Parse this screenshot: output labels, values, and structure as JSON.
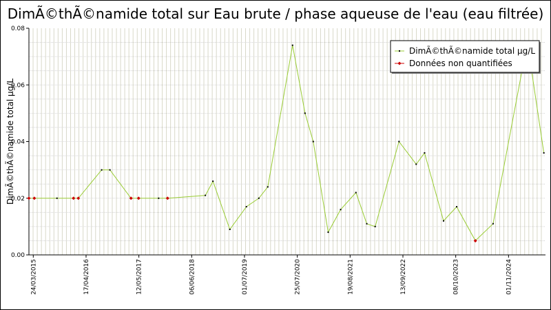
{
  "chart_data": {
    "type": "line",
    "title": "DimÃ©thÃ©namide total sur Eau brute / phase aqueuse de l'eau (eau filtrée)",
    "ylabel": "DimÃ©thÃ©namide total µg/L",
    "xlabel": "",
    "ylim": [
      0,
      0.08
    ],
    "yticks": [
      "0.00",
      "0.02",
      "0.04",
      "0.06",
      "0.08"
    ],
    "xticks": [
      "24/03/2015",
      "17/04/2016",
      "12/05/2017",
      "06/06/2018",
      "01/07/2019",
      "25/07/2020",
      "19/08/2021",
      "13/09/2022",
      "08/10/2023",
      "01/11/2024"
    ],
    "grid": true,
    "legend_position": "top-right",
    "colors": {
      "line": "#99cc33",
      "quantified": "#000000",
      "non_quantified": "#cc0000",
      "grid": "#d8d8c8"
    },
    "series": [
      {
        "name": "DimÃ©thÃ©namide total µg/L",
        "points": [
          {
            "x": "2015-02-20",
            "y": 0.02,
            "nq": true
          },
          {
            "x": "2015-04-01",
            "y": 0.02,
            "nq": true
          },
          {
            "x": "2015-09-15",
            "y": 0.02,
            "nq": false
          },
          {
            "x": "2016-01-15",
            "y": 0.02,
            "nq": true
          },
          {
            "x": "2016-02-20",
            "y": 0.02,
            "nq": true
          },
          {
            "x": "2016-08-10",
            "y": 0.03,
            "nq": false
          },
          {
            "x": "2016-10-10",
            "y": 0.03,
            "nq": false
          },
          {
            "x": "2017-03-15",
            "y": 0.02,
            "nq": true
          },
          {
            "x": "2017-05-10",
            "y": 0.02,
            "nq": true
          },
          {
            "x": "2017-10-05",
            "y": 0.02,
            "nq": false
          },
          {
            "x": "2017-12-10",
            "y": 0.02,
            "nq": true
          },
          {
            "x": "2018-09-15",
            "y": 0.021,
            "nq": false
          },
          {
            "x": "2018-11-10",
            "y": 0.026,
            "nq": false
          },
          {
            "x": "2019-03-15",
            "y": 0.009,
            "nq": false
          },
          {
            "x": "2019-07-15",
            "y": 0.017,
            "nq": false
          },
          {
            "x": "2019-10-15",
            "y": 0.02,
            "nq": false
          },
          {
            "x": "2019-12-20",
            "y": 0.024,
            "nq": false
          },
          {
            "x": "2020-06-20",
            "y": 0.074,
            "nq": false
          },
          {
            "x": "2020-09-20",
            "y": 0.05,
            "nq": false
          },
          {
            "x": "2020-11-20",
            "y": 0.04,
            "nq": false
          },
          {
            "x": "2021-03-10",
            "y": 0.008,
            "nq": false
          },
          {
            "x": "2021-06-10",
            "y": 0.016,
            "nq": false
          },
          {
            "x": "2021-10-01",
            "y": 0.022,
            "nq": false
          },
          {
            "x": "2021-12-20",
            "y": 0.011,
            "nq": false
          },
          {
            "x": "2022-02-20",
            "y": 0.01,
            "nq": false
          },
          {
            "x": "2022-08-15",
            "y": 0.04,
            "nq": false
          },
          {
            "x": "2022-12-20",
            "y": 0.032,
            "nq": false
          },
          {
            "x": "2023-02-20",
            "y": 0.036,
            "nq": false
          },
          {
            "x": "2023-07-10",
            "y": 0.012,
            "nq": false
          },
          {
            "x": "2023-10-15",
            "y": 0.017,
            "nq": false
          },
          {
            "x": "2024-03-01",
            "y": 0.005,
            "nq": true
          },
          {
            "x": "2024-07-10",
            "y": 0.011,
            "nq": false
          },
          {
            "x": "2025-03-20",
            "y": 0.075,
            "nq": false
          },
          {
            "x": "2025-07-20",
            "y": 0.036,
            "nq": false
          }
        ]
      }
    ],
    "legend": [
      {
        "label": "DimÃ©thÃ©namide total µg/L",
        "marker": "quantified"
      },
      {
        "label": "Données non quantifiées",
        "marker": "non_quantified"
      }
    ]
  }
}
